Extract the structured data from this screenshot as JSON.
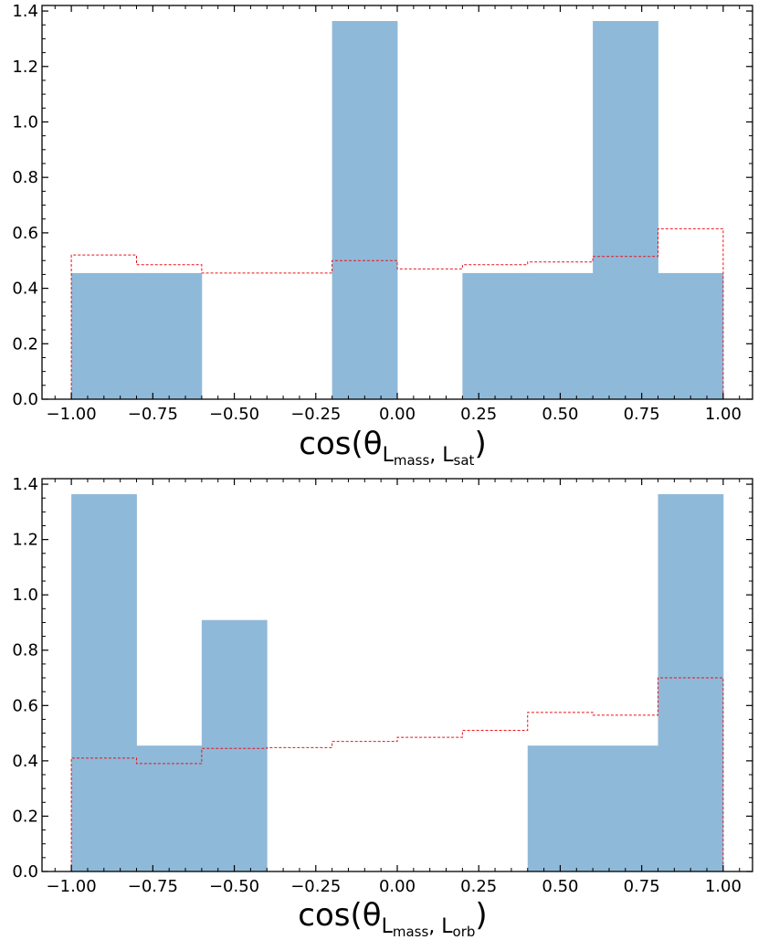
{
  "chart_data": [
    {
      "type": "bar",
      "bin_edges": [
        -1.0,
        -0.8,
        -0.6,
        -0.4,
        -0.2,
        0.0,
        0.2,
        0.4,
        0.6,
        0.8,
        1.0
      ],
      "series": [
        {
          "values": [
            0.455,
            0.455,
            0.0,
            0.0,
            1.364,
            0.0,
            0.455,
            0.455,
            1.364,
            0.455
          ],
          "color": "#8fb9d9",
          "style": "filled"
        },
        {
          "values": [
            0.52,
            0.485,
            0.455,
            0.455,
            0.5,
            0.47,
            0.485,
            0.495,
            0.515,
            0.615
          ],
          "color": "#e8141c",
          "style": "dashed-step"
        }
      ],
      "xlabel": {
        "base": "cos(θ",
        "sub1": "L",
        "subsub1": "mass",
        "sep": ", ",
        "sub2": "L",
        "subsub2": "sat",
        "close": ")"
      },
      "xlim": [
        -1.09,
        1.09
      ],
      "ylim": [
        0.0,
        1.42
      ],
      "xticks": [
        "−1.00",
        "−0.75",
        "−0.50",
        "−0.25",
        "0.00",
        "0.25",
        "0.50",
        "0.75",
        "1.00"
      ],
      "yticks": [
        "0.0",
        "0.2",
        "0.4",
        "0.6",
        "0.8",
        "1.0",
        "1.2",
        "1.4"
      ],
      "grid": false
    },
    {
      "type": "bar",
      "bin_edges": [
        -1.0,
        -0.8,
        -0.6,
        -0.4,
        -0.2,
        0.0,
        0.2,
        0.4,
        0.6,
        0.8,
        1.0
      ],
      "series": [
        {
          "values": [
            1.364,
            0.455,
            0.909,
            0.0,
            0.0,
            0.0,
            0.0,
            0.455,
            0.455,
            1.364
          ],
          "color": "#8fb9d9",
          "style": "filled"
        },
        {
          "values": [
            0.41,
            0.39,
            0.445,
            0.448,
            0.47,
            0.485,
            0.51,
            0.575,
            0.565,
            0.7
          ],
          "color": "#e8141c",
          "style": "dashed-step"
        }
      ],
      "xlabel": {
        "base": "cos(θ",
        "sub1": "L",
        "subsub1": "mass",
        "sep": ", ",
        "sub2": "L",
        "subsub2": "orb",
        "close": ")"
      },
      "xlim": [
        -1.09,
        1.09
      ],
      "ylim": [
        0.0,
        1.42
      ],
      "xticks": [
        "−1.00",
        "−0.75",
        "−0.50",
        "−0.25",
        "0.00",
        "0.25",
        "0.50",
        "0.75",
        "1.00"
      ],
      "yticks": [
        "0.0",
        "0.2",
        "0.4",
        "0.6",
        "0.8",
        "1.0",
        "1.2",
        "1.4"
      ],
      "grid": false
    }
  ]
}
